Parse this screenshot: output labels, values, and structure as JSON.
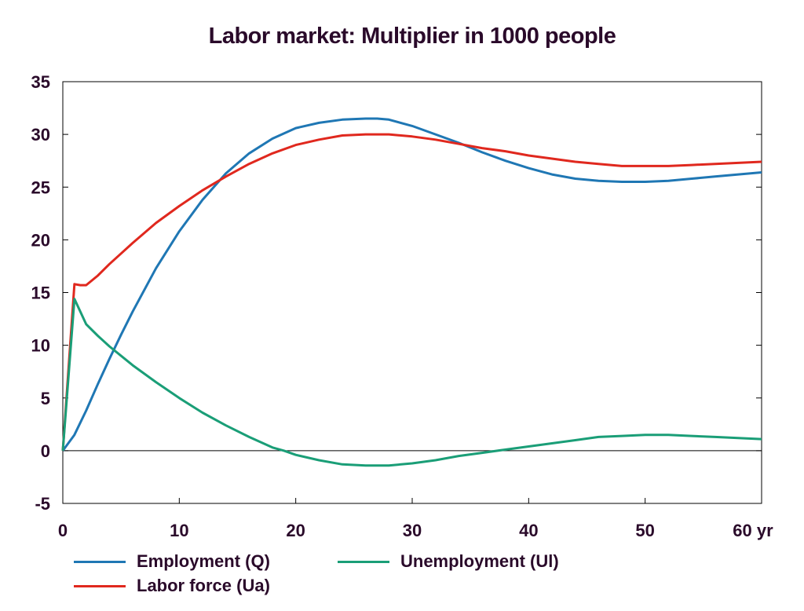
{
  "chart_data": {
    "type": "line",
    "title": "Labor market: Multiplier in 1000 people",
    "x_unit": "yr",
    "xlim": [
      0,
      60
    ],
    "ylim": [
      -5,
      35
    ],
    "x_ticks": [
      0,
      10,
      20,
      30,
      40,
      50,
      60
    ],
    "x_tick_labels": [
      "0",
      "10",
      "20",
      "30",
      "40",
      "50",
      "60 yr"
    ],
    "y_ticks": [
      -5,
      0,
      5,
      10,
      15,
      20,
      25,
      30,
      35
    ],
    "y_tick_labels": [
      "-5",
      "0",
      "5",
      "10",
      "15",
      "20",
      "25",
      "30",
      "35"
    ],
    "zero_line": true,
    "grid": false,
    "legend_position": "bottom",
    "series": [
      {
        "name": "Employment (Q)",
        "color": "#1f77b4",
        "x": [
          0,
          1,
          2,
          3,
          4,
          5,
          6,
          8,
          10,
          12,
          14,
          16,
          18,
          20,
          22,
          24,
          26,
          27,
          28,
          30,
          32,
          34,
          36,
          38,
          40,
          42,
          44,
          46,
          48,
          50,
          52,
          54,
          56,
          58,
          60
        ],
        "y": [
          0,
          1.5,
          3.8,
          6.3,
          8.7,
          11.0,
          13.2,
          17.3,
          20.8,
          23.8,
          26.3,
          28.2,
          29.6,
          30.6,
          31.1,
          31.4,
          31.5,
          31.5,
          31.4,
          30.8,
          30.0,
          29.2,
          28.3,
          27.5,
          26.8,
          26.2,
          25.8,
          25.6,
          25.5,
          25.5,
          25.6,
          25.8,
          26.0,
          26.2,
          26.4
        ]
      },
      {
        "name": "Labor force (Ua)",
        "color": "#e0281e",
        "x": [
          0,
          1,
          1.5,
          2,
          3,
          4,
          5,
          6,
          8,
          10,
          12,
          14,
          16,
          18,
          20,
          22,
          24,
          26,
          28,
          30,
          32,
          34,
          36,
          38,
          40,
          42,
          44,
          46,
          48,
          50,
          52,
          54,
          56,
          58,
          60
        ],
        "y": [
          0,
          15.8,
          15.7,
          15.7,
          16.6,
          17.7,
          18.7,
          19.7,
          21.6,
          23.2,
          24.7,
          26.0,
          27.2,
          28.2,
          29.0,
          29.5,
          29.9,
          30.0,
          30.0,
          29.8,
          29.5,
          29.1,
          28.7,
          28.4,
          28.0,
          27.7,
          27.4,
          27.2,
          27.0,
          27.0,
          27.0,
          27.1,
          27.2,
          27.3,
          27.4
        ]
      },
      {
        "name": "Unemployment (Ul)",
        "color": "#1a9e77",
        "x": [
          0,
          1,
          2,
          3,
          4,
          5,
          6,
          8,
          10,
          12,
          14,
          16,
          18,
          19,
          20,
          22,
          24,
          26,
          28,
          30,
          32,
          34,
          36,
          38,
          40,
          42,
          44,
          46,
          48,
          50,
          52,
          54,
          56,
          58,
          60
        ],
        "y": [
          0,
          14.4,
          12.0,
          10.9,
          9.9,
          9.0,
          8.1,
          6.5,
          5.0,
          3.6,
          2.4,
          1.3,
          0.3,
          0.0,
          -0.4,
          -0.9,
          -1.3,
          -1.4,
          -1.4,
          -1.2,
          -0.9,
          -0.5,
          -0.2,
          0.1,
          0.4,
          0.7,
          1.0,
          1.3,
          1.4,
          1.5,
          1.5,
          1.4,
          1.3,
          1.2,
          1.1
        ]
      }
    ]
  },
  "legend": {
    "employment_label": "Employment (Q)",
    "unemployment_label": "Unemployment (Ul)",
    "labor_force_label": "Labor force (Ua)"
  }
}
